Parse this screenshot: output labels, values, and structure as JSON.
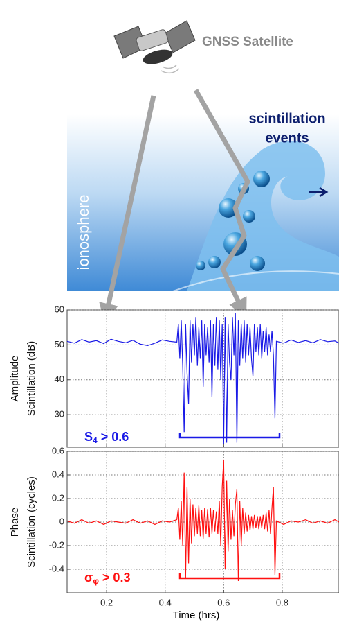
{
  "diagram": {
    "satellite_label": "GNSS Satellite",
    "event_label": [
      "scintillation",
      "events"
    ],
    "layer_label": "ionosphere"
  },
  "chart_data": [
    {
      "type": "line",
      "ylabel": [
        "Amplitude",
        "Scintillation (dB)"
      ],
      "annotation": [
        "S",
        "4",
        " > 0.6"
      ],
      "color": "#1a1ae6",
      "x": [
        0.065,
        0.09,
        0.115,
        0.14,
        0.165,
        0.19,
        0.215,
        0.24,
        0.265,
        0.29,
        0.315,
        0.34,
        0.365,
        0.39,
        0.415,
        0.44,
        0.445,
        0.45,
        0.455,
        0.46,
        0.465,
        0.47,
        0.475,
        0.48,
        0.485,
        0.49,
        0.495,
        0.5,
        0.505,
        0.51,
        0.515,
        0.52,
        0.525,
        0.53,
        0.535,
        0.54,
        0.545,
        0.55,
        0.555,
        0.56,
        0.565,
        0.57,
        0.575,
        0.58,
        0.585,
        0.59,
        0.595,
        0.6,
        0.605,
        0.61,
        0.615,
        0.62,
        0.625,
        0.63,
        0.635,
        0.64,
        0.645,
        0.65,
        0.655,
        0.66,
        0.665,
        0.67,
        0.675,
        0.68,
        0.685,
        0.69,
        0.695,
        0.7,
        0.705,
        0.71,
        0.715,
        0.72,
        0.725,
        0.73,
        0.735,
        0.74,
        0.745,
        0.75,
        0.755,
        0.76,
        0.765,
        0.77,
        0.775,
        0.78,
        0.805,
        0.83,
        0.855,
        0.88,
        0.905,
        0.93,
        0.955,
        0.98,
        0.994
      ],
      "values": [
        51,
        50.5,
        51.5,
        50.8,
        51.2,
        50.4,
        51.6,
        51,
        50.6,
        51.3,
        50.2,
        49.8,
        50.5,
        51.4,
        51,
        50.8,
        56,
        46,
        57,
        44,
        25,
        56,
        42,
        33,
        57,
        45,
        56,
        47,
        58,
        44,
        55,
        46,
        57,
        38,
        56,
        47,
        55,
        45,
        57,
        35,
        56,
        44,
        58,
        43,
        57,
        40,
        56,
        21.5,
        58,
        22,
        56,
        45,
        40,
        58,
        47,
        59,
        22,
        57,
        44,
        56,
        46,
        57,
        45,
        56,
        47,
        55,
        46,
        41,
        56,
        48,
        55,
        47,
        56,
        46,
        54,
        48,
        55,
        47,
        53,
        48,
        54,
        47,
        29,
        51,
        50.5,
        51.4,
        50.7,
        51.2,
        50.6,
        51.5,
        50.9,
        51.1,
        50.5
      ],
      "xlim": [
        0.065,
        0.994
      ],
      "ylim": [
        20.7,
        60
      ],
      "yticks": [
        30,
        40,
        50,
        60
      ],
      "grid": true
    },
    {
      "type": "line",
      "ylabel": [
        "Phase",
        "Scintillation (cycles)"
      ],
      "annotation": [
        "σ",
        "φ",
        " > 0.3"
      ],
      "color": "#ff1010",
      "xlabel": "Time (hrs)",
      "x": [
        0.065,
        0.09,
        0.115,
        0.14,
        0.165,
        0.19,
        0.215,
        0.24,
        0.265,
        0.29,
        0.315,
        0.34,
        0.365,
        0.39,
        0.415,
        0.44,
        0.445,
        0.45,
        0.455,
        0.46,
        0.465,
        0.47,
        0.475,
        0.48,
        0.485,
        0.49,
        0.495,
        0.5,
        0.505,
        0.51,
        0.515,
        0.52,
        0.525,
        0.53,
        0.535,
        0.54,
        0.545,
        0.55,
        0.555,
        0.56,
        0.565,
        0.57,
        0.575,
        0.58,
        0.585,
        0.59,
        0.595,
        0.6,
        0.605,
        0.61,
        0.615,
        0.62,
        0.625,
        0.63,
        0.635,
        0.64,
        0.645,
        0.65,
        0.655,
        0.66,
        0.665,
        0.67,
        0.675,
        0.68,
        0.685,
        0.69,
        0.695,
        0.7,
        0.705,
        0.71,
        0.715,
        0.72,
        0.725,
        0.73,
        0.735,
        0.74,
        0.745,
        0.75,
        0.755,
        0.76,
        0.765,
        0.77,
        0.775,
        0.78,
        0.805,
        0.83,
        0.855,
        0.88,
        0.905,
        0.93,
        0.955,
        0.98,
        0.994
      ],
      "values": [
        0.01,
        -0.01,
        0.02,
        -0.01,
        0.01,
        -0.02,
        0.01,
        0,
        -0.01,
        0.02,
        -0.01,
        0.01,
        -0.02,
        0.01,
        0,
        0.02,
        0.12,
        -0.15,
        0.18,
        -0.2,
        0.42,
        -0.48,
        0.3,
        -0.35,
        0.2,
        -0.18,
        0.15,
        -0.12,
        0.12,
        -0.1,
        0.14,
        -0.12,
        0.1,
        -0.14,
        0.12,
        -0.1,
        0.11,
        -0.13,
        0.12,
        -0.1,
        0.1,
        -0.08,
        0.09,
        -0.1,
        0.18,
        -0.2,
        0.3,
        0.53,
        -0.4,
        0.35,
        -0.25,
        0.2,
        -0.15,
        0.1,
        -0.12,
        0.15,
        0.28,
        -0.5,
        0.18,
        -0.2,
        0.12,
        -0.1,
        0.08,
        -0.08,
        0.06,
        -0.07,
        0.05,
        -0.06,
        0.06,
        -0.05,
        0.05,
        -0.06,
        0.05,
        -0.05,
        0.06,
        -0.06,
        0.08,
        -0.08,
        0.1,
        -0.1,
        0.12,
        0.3,
        -0.45,
        0.01,
        -0.02,
        0.01,
        0,
        0.02,
        -0.01,
        0.01,
        -0.01,
        0.02,
        0
      ],
      "xlim": [
        0.065,
        0.994
      ],
      "ylim": [
        -0.6,
        0.6
      ],
      "yticks": [
        -0.4,
        -0.2,
        0,
        0.2,
        0.4,
        0.6
      ],
      "xticks": [
        0.2,
        0.4,
        0.6,
        0.8
      ],
      "grid": true
    }
  ]
}
